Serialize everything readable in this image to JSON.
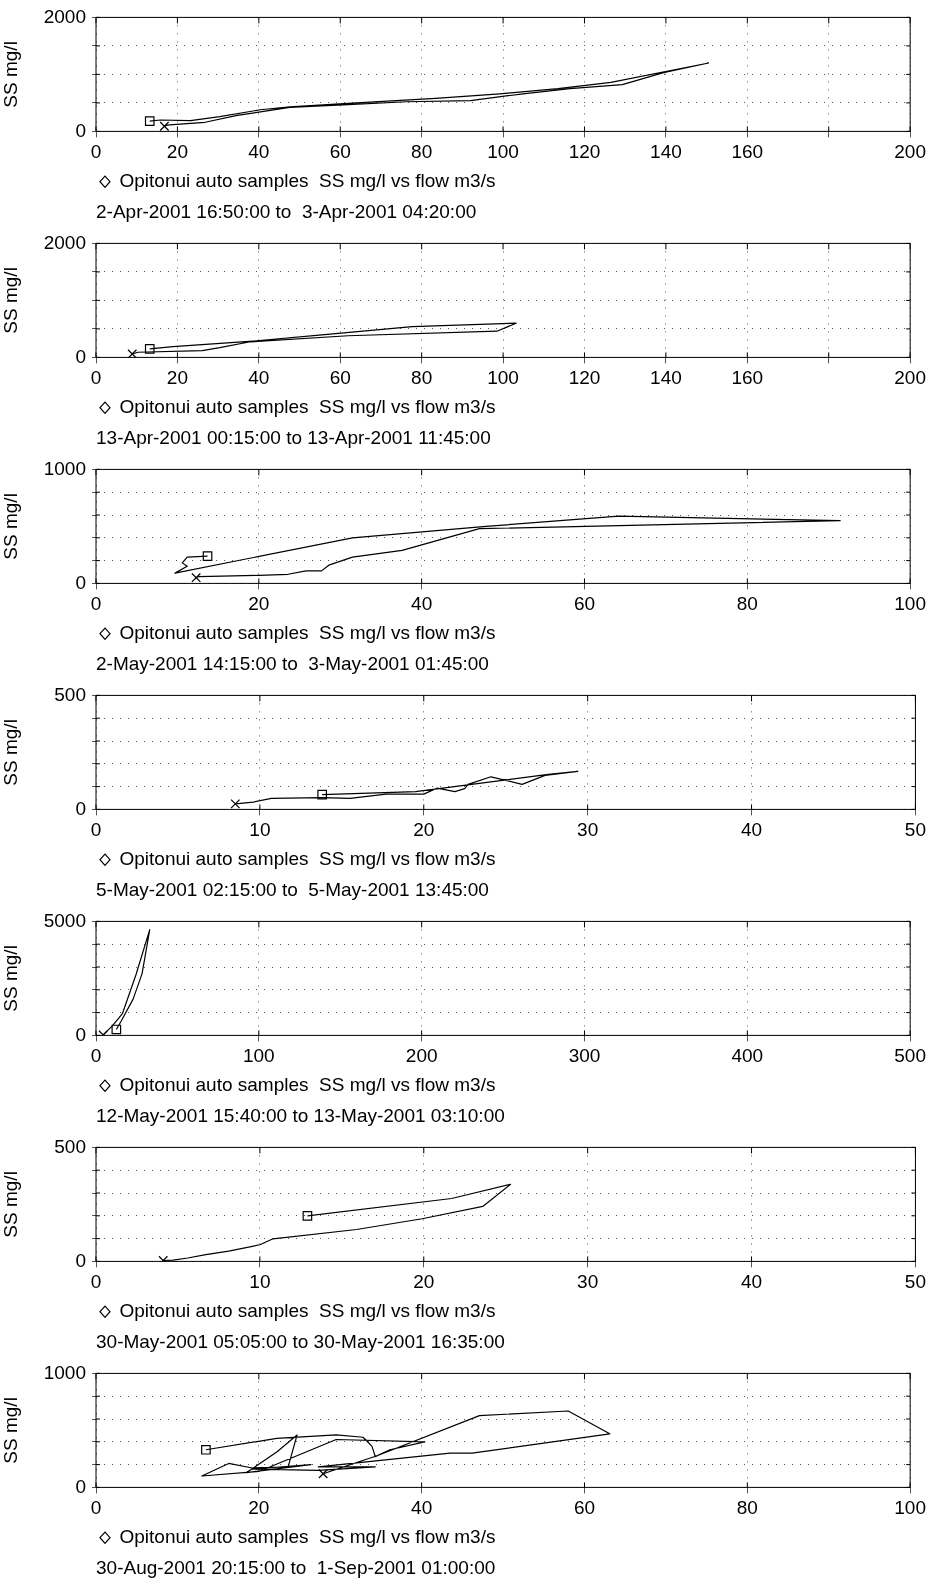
{
  "chart_data": [
    {
      "type": "line",
      "ylabel": "SS mg/l",
      "subtitle": "2-Apr-2001 16:50:00 to  3-Apr-2001 04:20:00",
      "legend": "bottom left",
      "grid": true,
      "xlim": [
        0,
        200
      ],
      "xticks": [
        0,
        20,
        40,
        60,
        80,
        100,
        120,
        140,
        160,
        {
          "value": 180,
          "label": null
        },
        200
      ],
      "ylim": [
        0,
        2000
      ],
      "yticks": [
        0,
        {
          "value": 500,
          "label": null
        },
        {
          "value": 1000,
          "label": null
        },
        {
          "value": 1500,
          "label": null
        },
        2000
      ],
      "series": [
        {
          "name": "Opitonui auto samples  SS mg/l vs flow m3/s",
          "color": "#000000",
          "marker": "none",
          "x": [
            13.2,
            15.8,
            23.2,
            30.4,
            40.4,
            47.6,
            61.9,
            83.4,
            99.2,
            113.5,
            126.5,
            150.5,
            139.4,
            129.3,
            116.4,
            104.9,
            92.0,
            76.3,
            61.9,
            47.6,
            34.7,
            26.8,
            18.9,
            17.5,
            16.8
          ],
          "values": [
            180,
            200,
            190,
            260,
            380,
            430,
            490,
            580,
            660,
            750,
            860,
            1200,
            1030,
            820,
            750,
            660,
            540,
            520,
            470,
            420,
            280,
            160,
            120,
            110,
            90
          ]
        },
        {
          "type": "scatter",
          "color": "#000000",
          "marker": "square",
          "x": [
            13.2
          ],
          "values": [
            180
          ]
        },
        {
          "type": "scatter",
          "color": "#000000",
          "marker": "cross",
          "x": [
            16.8
          ],
          "values": [
            90
          ]
        }
      ]
    },
    {
      "type": "line",
      "ylabel": "SS mg/l",
      "subtitle": "13-Apr-2001 00:15:00 to 13-Apr-2001 11:45:00",
      "legend": "bottom left",
      "grid": true,
      "xlim": [
        0,
        200
      ],
      "xticks": [
        0,
        20,
        40,
        60,
        80,
        100,
        120,
        140,
        160,
        {
          "value": 180,
          "label": null
        },
        200
      ],
      "ylim": [
        0,
        2000
      ],
      "yticks": [
        0,
        {
          "value": 500,
          "label": null
        },
        {
          "value": 1000,
          "label": null
        },
        {
          "value": 1500,
          "label": null
        },
        2000
      ],
      "series": [
        {
          "name": "Opitonui auto samples  SS mg/l vs flow m3/s",
          "color": "#000000",
          "marker": "none",
          "x": [
            13.2,
            18.9,
            37.6,
            54.8,
            77.7,
            103.2,
            98.5,
            61.9,
            37.6,
            30.4,
            26.1,
            10.3,
            8.9
          ],
          "values": [
            150,
            190,
            280,
            390,
            540,
            600,
            460,
            380,
            270,
            170,
            120,
            90,
            60
          ]
        },
        {
          "type": "scatter",
          "color": "#000000",
          "marker": "square",
          "x": [
            13.2
          ],
          "values": [
            150
          ]
        },
        {
          "type": "scatter",
          "color": "#000000",
          "marker": "cross",
          "x": [
            8.9
          ],
          "values": [
            60
          ]
        }
      ]
    },
    {
      "type": "line",
      "ylabel": "SS mg/l",
      "subtitle": "2-May-2001 14:15:00 to  3-May-2001 01:45:00",
      "legend": "bottom left",
      "grid": true,
      "xlim": [
        0,
        100
      ],
      "xticks": [
        0,
        20,
        40,
        60,
        80,
        100
      ],
      "ylim": [
        0,
        1000
      ],
      "yticks": [
        0,
        {
          "value": 200,
          "label": null
        },
        {
          "value": 400,
          "label": null
        },
        {
          "value": 600,
          "label": null
        },
        {
          "value": 800,
          "label": null
        },
        1000
      ],
      "series": [
        {
          "name": "Opitonui auto samples  SS mg/l vs flow m3/s",
          "color": "#000000",
          "marker": "none",
          "x": [
            13.7,
            11.2,
            10.6,
            11.2,
            9.7,
            31.5,
            47.9,
            64.2,
            91.4,
            47.1,
            37.6,
            31.5,
            28.6,
            27.7,
            25.8,
            23.6,
            20.0,
            12.6,
            12.3
          ],
          "values": [
            240,
            230,
            180,
            150,
            90,
            400,
            500,
            590,
            550,
            480,
            290,
            230,
            160,
            110,
            110,
            80,
            70,
            60,
            50
          ]
        },
        {
          "type": "scatter",
          "color": "#000000",
          "marker": "square",
          "x": [
            13.7
          ],
          "values": [
            240
          ]
        },
        {
          "type": "scatter",
          "color": "#000000",
          "marker": "cross",
          "x": [
            12.3
          ],
          "values": [
            50
          ]
        }
      ]
    },
    {
      "type": "line",
      "ylabel": "SS mg/l",
      "subtitle": "5-May-2001 02:15:00 to  5-May-2001 13:45:00",
      "legend": "bottom left",
      "grid": true,
      "xlim": [
        0,
        50
      ],
      "xticks": [
        0,
        10,
        20,
        30,
        40,
        50
      ],
      "ylim": [
        0,
        500
      ],
      "yticks": [
        0,
        {
          "value": 100,
          "label": null
        },
        {
          "value": 200,
          "label": null
        },
        {
          "value": 300,
          "label": null
        },
        {
          "value": 400,
          "label": null
        },
        500
      ],
      "series": [
        {
          "name": "Opitonui auto samples  SS mg/l vs flow m3/s",
          "color": "#000000",
          "marker": "none",
          "x": [
            13.8,
            19.5,
            22.1,
            27.6,
            29.4,
            27.4,
            26.0,
            24.1,
            22.7,
            22.5,
            21.9,
            20.8,
            20.0,
            17.7,
            15.5,
            13.8,
            10.7,
            9.6,
            8.5
          ],
          "values": [
            65,
            78,
            102,
            154,
            167,
            149,
            110,
            143,
            110,
            91,
            78,
            93,
            67,
            67,
            48,
            52,
            48,
            32,
            24
          ]
        },
        {
          "type": "scatter",
          "color": "#000000",
          "marker": "square",
          "x": [
            13.8
          ],
          "values": [
            65
          ]
        },
        {
          "type": "scatter",
          "color": "#000000",
          "marker": "cross",
          "x": [
            8.5
          ],
          "values": [
            24
          ]
        }
      ]
    },
    {
      "type": "line",
      "ylabel": "SS mg/l",
      "subtitle": "12-May-2001 15:40:00 to 13-May-2001 03:10:00",
      "legend": "bottom left",
      "grid": true,
      "xlim": [
        0,
        500
      ],
      "xticks": [
        0,
        100,
        200,
        300,
        400,
        500
      ],
      "ylim": [
        0,
        5000
      ],
      "yticks": [
        0,
        {
          "value": 1000,
          "label": null
        },
        {
          "value": 2000,
          "label": null
        },
        {
          "value": 3000,
          "label": null
        },
        {
          "value": 4000,
          "label": null
        },
        5000
      ],
      "series": [
        {
          "name": "Opitonui auto samples  SS mg/l vs flow m3/s",
          "color": "#000000",
          "marker": "none",
          "x": [
            12.5,
            15.4,
            22.8,
            28.3,
            33.0,
            24.6,
            16.2,
            9.9,
            4.4
          ],
          "values": [
            260,
            620,
            1590,
            2710,
            4640,
            2670,
            950,
            410,
            20
          ]
        },
        {
          "type": "scatter",
          "color": "#000000",
          "marker": "square",
          "x": [
            12.5
          ],
          "values": [
            260
          ]
        },
        {
          "type": "scatter",
          "color": "#000000",
          "marker": "cross",
          "x": [
            4.4
          ],
          "values": [
            20
          ]
        }
      ]
    },
    {
      "type": "line",
      "ylabel": "SS mg/l",
      "subtitle": "30-May-2001 05:05:00 to 30-May-2001 16:35:00",
      "legend": "bottom left",
      "grid": true,
      "xlim": [
        0,
        50
      ],
      "xticks": [
        0,
        10,
        20,
        30,
        40,
        50
      ],
      "ylim": [
        0,
        500
      ],
      "yticks": [
        0,
        {
          "value": 100,
          "label": null
        },
        {
          "value": 200,
          "label": null
        },
        {
          "value": 300,
          "label": null
        },
        {
          "value": 400,
          "label": null
        },
        500
      ],
      "series": [
        {
          "name": "Opitonui auto samples  SS mg/l vs flow m3/s",
          "color": "#000000",
          "marker": "none",
          "x": [
            12.9,
            21.7,
            25.3,
            23.6,
            19.9,
            15.9,
            10.8,
            10.0,
            8.1,
            6.7,
            5.6,
            4.7,
            4.1
          ],
          "values": [
            200,
            276,
            338,
            241,
            187,
            140,
            99,
            73,
            45,
            30,
            15,
            6,
            4
          ]
        },
        {
          "type": "scatter",
          "color": "#000000",
          "marker": "square",
          "x": [
            12.9
          ],
          "values": [
            200
          ]
        },
        {
          "type": "scatter",
          "color": "#000000",
          "marker": "cross",
          "x": [
            4.1
          ],
          "values": [
            4
          ]
        }
      ]
    },
    {
      "type": "line",
      "ylabel": "SS mg/l",
      "subtitle": "30-Aug-2001 20:15:00 to  1-Sep-2001 01:00:00",
      "legend": "bottom left",
      "grid": true,
      "xlim": [
        0,
        100
      ],
      "xticks": [
        0,
        20,
        40,
        60,
        80,
        100
      ],
      "ylim": [
        0,
        1000
      ],
      "yticks": [
        0,
        {
          "value": 200,
          "label": null
        },
        {
          "value": 400,
          "label": null
        },
        {
          "value": 600,
          "label": null
        },
        {
          "value": 800,
          "label": null
        },
        1000
      ],
      "series": [
        {
          "name": "Opitonui auto samples  SS mg/l vs flow m3/s",
          "color": "#000000",
          "marker": "none",
          "x": [
            13.5,
            22.2,
            29.5,
            32.8,
            33.9,
            34.3,
            36.1,
            40.4,
            29.5,
            20.0,
            13.0,
            16.3,
            19.2,
            23.6,
            24.7,
            22.2,
            18.5,
            26.4,
            19.2,
            27.3,
            34.3,
            27.3,
            43.5,
            46.2,
            63.1,
            58.0,
            47.1,
            34.6,
            27.9
          ],
          "values": [
            330,
            430,
            460,
            440,
            360,
            270,
            330,
            400,
            420,
            140,
            100,
            210,
            170,
            180,
            460,
            310,
            130,
            200,
            160,
            150,
            180,
            180,
            300,
            300,
            470,
            670,
            630,
            280,
            120
          ]
        },
        {
          "type": "scatter",
          "color": "#000000",
          "marker": "square",
          "x": [
            13.5
          ],
          "values": [
            330
          ]
        },
        {
          "type": "scatter",
          "color": "#000000",
          "marker": "cross",
          "x": [
            27.9
          ],
          "values": [
            120
          ]
        }
      ]
    }
  ]
}
